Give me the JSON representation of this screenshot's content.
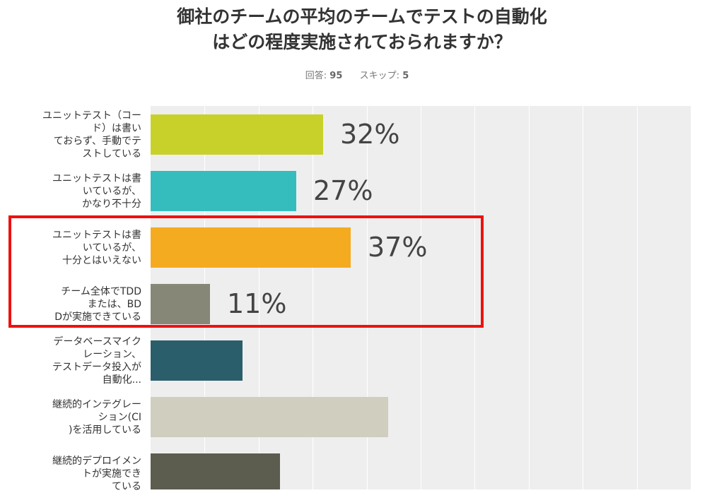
{
  "title_lines": [
    "御社のチームの平均のチームでテストの自動化",
    "はどの程度実施されておられますか？"
  ],
  "meta": {
    "answered_label": "回答:",
    "answered_value": "95",
    "skipped_label": "スキップ:",
    "skipped_value": "5"
  },
  "chart_data": {
    "type": "bar",
    "orientation": "horizontal",
    "categories": [
      "ユニットテスト（コード）は書いておらず、手動でテストしている",
      "ユニットテストは書いているが、かなり不十分",
      "ユニットテストは書いているが、十分とはいえない",
      "チーム全体でTDDまたは、BDDが実施できている",
      "データベースマイグレーション、テストデータ投入が自動化...",
      "継続的インテグレーション(CI)を活用している",
      "継続的デプロイメントが実施できている"
    ],
    "category_label_lines": [
      [
        "ユニットテスト（コー",
        "ド）は書い",
        "ておらず、手動でテ",
        "ストしている"
      ],
      [
        "ユニットテストは書",
        "いているが、",
        "かなり不十分"
      ],
      [
        "ユニットテストは書",
        "いているが、",
        "十分とはいえない"
      ],
      [
        "チーム全体でTDD",
        "または、BD",
        "Dが実施できている"
      ],
      [
        "データベースマイク",
        "レーション、",
        "テストデータ投入が",
        "自動化..."
      ],
      [
        "継続的インテグレー",
        "ション(CI",
        ")を活用している"
      ],
      [
        "継続的デプロイメン",
        "トが実施でき",
        "ている"
      ]
    ],
    "values": [
      32,
      27,
      37,
      11,
      17,
      44,
      24
    ],
    "value_labels": [
      "32%",
      "27%",
      "37%",
      "11%",
      "",
      "",
      ""
    ],
    "colors": [
      "#c8d12a",
      "#35bdbd",
      "#f4ab1f",
      "#878778",
      "#2b5e6b",
      "#cfcebf",
      "#5c5c4f"
    ],
    "xlim": [
      0,
      100
    ],
    "grid": true,
    "highlight_color": "#ee1111"
  }
}
